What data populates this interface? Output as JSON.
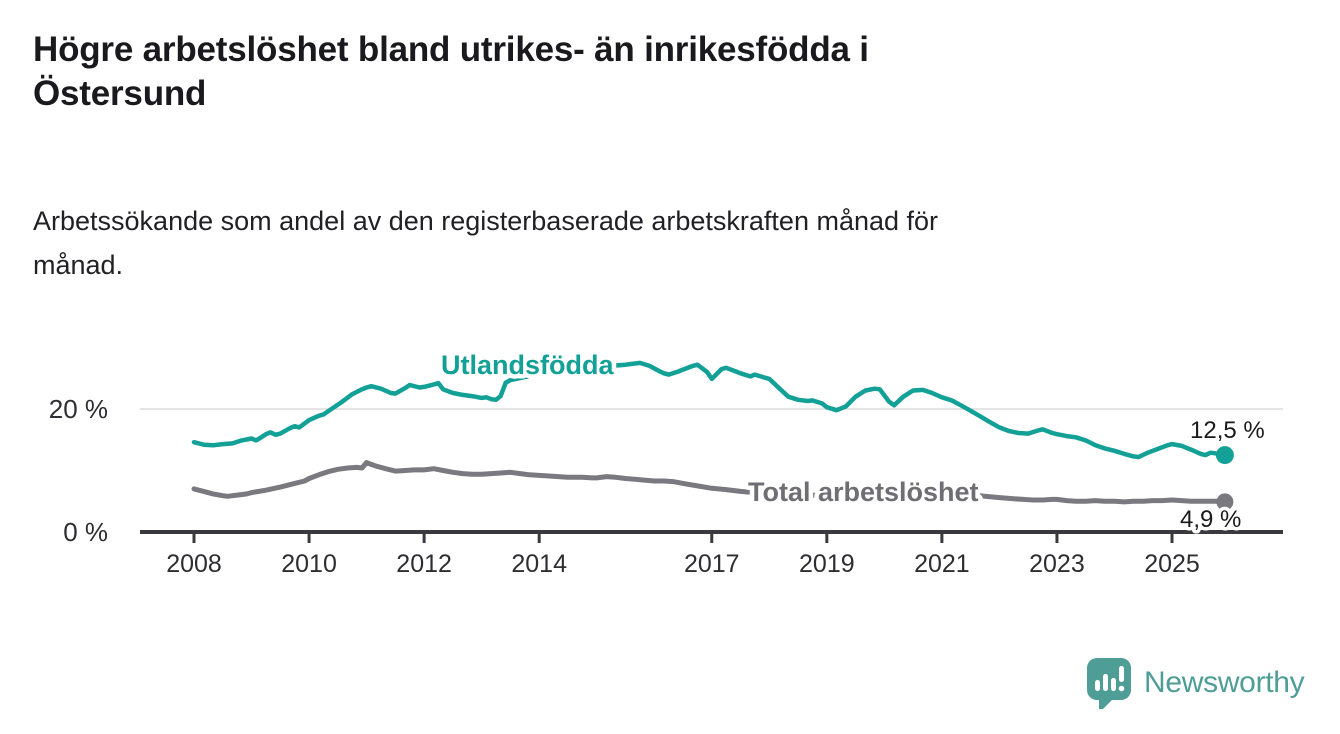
{
  "header": {
    "title_line1": "Högre arbetslöshet bland utrikes- än inrikesfödda i",
    "title_line2": "Östersund",
    "subtitle_line1": "Arbetssökande som andel av den registerbaserade arbetskraften månad för",
    "subtitle_line2": "månad."
  },
  "footer": {
    "brand": "Newsworthy",
    "logo_icon": "speech-bubble-bar-chart-icon"
  },
  "colors": {
    "series_foreign_born": "#13a096",
    "series_total": "#7a797f",
    "grid": "#dcdcdc",
    "axis": "#3a3a3e",
    "logo": "#4f9d97"
  },
  "chart_data": {
    "type": "line",
    "title": "Högre arbetslöshet bland utrikes- än inrikesfödda i Östersund",
    "subtitle": "Arbetssökande som andel av den registerbaserade arbetskraften månad för månad.",
    "xlabel": "",
    "ylabel": "",
    "grid": "single horizontal gridline at 20 %",
    "legend_position": "inline labels on lines",
    "x_axis": {
      "range_years": [
        2007.9,
        2026.3
      ],
      "ticks": [
        2008,
        2010,
        2012,
        2014,
        2017,
        2019,
        2021,
        2023,
        2025
      ],
      "tick_labels": [
        "2008",
        "2010",
        "2012",
        "2014",
        "2017",
        "2019",
        "2021",
        "2023",
        "2025"
      ]
    },
    "y_axis": {
      "range": [
        0,
        29
      ],
      "ticks": [
        0,
        20
      ],
      "labels": [
        "0 %",
        "20 %"
      ],
      "unit": "%"
    },
    "series": [
      {
        "name": "Utlandsfödda",
        "color": "#13a096",
        "end_value": 12.5,
        "end_label": "12,5 %",
        "points": [
          [
            2008.0,
            14.6
          ],
          [
            2008.17,
            14.2
          ],
          [
            2008.33,
            14.1
          ],
          [
            2008.5,
            14.3
          ],
          [
            2008.67,
            14.4
          ],
          [
            2008.83,
            14.9
          ],
          [
            2009.0,
            15.2
          ],
          [
            2009.08,
            14.9
          ],
          [
            2009.17,
            15.4
          ],
          [
            2009.25,
            15.9
          ],
          [
            2009.33,
            16.2
          ],
          [
            2009.42,
            15.8
          ],
          [
            2009.5,
            16.0
          ],
          [
            2009.67,
            16.9
          ],
          [
            2009.75,
            17.2
          ],
          [
            2009.83,
            17.0
          ],
          [
            2010.0,
            18.2
          ],
          [
            2010.17,
            18.9
          ],
          [
            2010.25,
            19.1
          ],
          [
            2010.42,
            20.2
          ],
          [
            2010.58,
            21.2
          ],
          [
            2010.75,
            22.4
          ],
          [
            2010.92,
            23.2
          ],
          [
            2011.0,
            23.5
          ],
          [
            2011.08,
            23.7
          ],
          [
            2011.25,
            23.3
          ],
          [
            2011.42,
            22.6
          ],
          [
            2011.5,
            22.5
          ],
          [
            2011.67,
            23.4
          ],
          [
            2011.75,
            23.9
          ],
          [
            2011.92,
            23.5
          ],
          [
            2012.0,
            23.6
          ],
          [
            2012.17,
            24.0
          ],
          [
            2012.25,
            24.2
          ],
          [
            2012.33,
            23.2
          ],
          [
            2012.5,
            22.6
          ],
          [
            2012.67,
            22.3
          ],
          [
            2012.83,
            22.1
          ],
          [
            2013.0,
            21.8
          ],
          [
            2013.08,
            21.9
          ],
          [
            2013.17,
            21.6
          ],
          [
            2013.25,
            21.5
          ],
          [
            2013.33,
            22.1
          ],
          [
            2013.42,
            24.3
          ],
          [
            2013.5,
            24.7
          ],
          [
            2013.75,
            25.2
          ],
          [
            2014.0,
            25.6
          ],
          [
            2014.25,
            25.9
          ],
          [
            2014.5,
            26.2
          ],
          [
            2014.75,
            26.5
          ],
          [
            2015.0,
            26.8
          ],
          [
            2015.25,
            27.0
          ],
          [
            2015.5,
            27.2
          ],
          [
            2015.75,
            27.5
          ],
          [
            2015.92,
            27.0
          ],
          [
            2016.08,
            26.2
          ],
          [
            2016.17,
            25.8
          ],
          [
            2016.25,
            25.6
          ],
          [
            2016.42,
            26.1
          ],
          [
            2016.5,
            26.4
          ],
          [
            2016.67,
            27.0
          ],
          [
            2016.75,
            27.2
          ],
          [
            2016.92,
            26.0
          ],
          [
            2017.0,
            24.9
          ],
          [
            2017.17,
            26.5
          ],
          [
            2017.25,
            26.7
          ],
          [
            2017.42,
            26.1
          ],
          [
            2017.5,
            25.8
          ],
          [
            2017.67,
            25.3
          ],
          [
            2017.75,
            25.6
          ],
          [
            2017.92,
            25.1
          ],
          [
            2018.0,
            24.9
          ],
          [
            2018.17,
            23.4
          ],
          [
            2018.33,
            22.0
          ],
          [
            2018.5,
            21.5
          ],
          [
            2018.67,
            21.3
          ],
          [
            2018.75,
            21.4
          ],
          [
            2018.92,
            20.9
          ],
          [
            2019.0,
            20.3
          ],
          [
            2019.17,
            19.8
          ],
          [
            2019.33,
            20.4
          ],
          [
            2019.5,
            22.0
          ],
          [
            2019.67,
            23.0
          ],
          [
            2019.83,
            23.3
          ],
          [
            2019.92,
            23.2
          ],
          [
            2020.08,
            21.2
          ],
          [
            2020.17,
            20.6
          ],
          [
            2020.33,
            22.0
          ],
          [
            2020.5,
            23.0
          ],
          [
            2020.67,
            23.1
          ],
          [
            2020.83,
            22.6
          ],
          [
            2021.0,
            21.9
          ],
          [
            2021.17,
            21.4
          ],
          [
            2021.33,
            20.6
          ],
          [
            2021.5,
            19.7
          ],
          [
            2021.67,
            18.8
          ],
          [
            2021.83,
            17.9
          ],
          [
            2022.0,
            17.0
          ],
          [
            2022.17,
            16.4
          ],
          [
            2022.33,
            16.1
          ],
          [
            2022.5,
            16.0
          ],
          [
            2022.67,
            16.5
          ],
          [
            2022.75,
            16.7
          ],
          [
            2022.92,
            16.1
          ],
          [
            2023.0,
            15.9
          ],
          [
            2023.17,
            15.6
          ],
          [
            2023.33,
            15.4
          ],
          [
            2023.5,
            14.9
          ],
          [
            2023.67,
            14.1
          ],
          [
            2023.83,
            13.6
          ],
          [
            2024.0,
            13.2
          ],
          [
            2024.17,
            12.7
          ],
          [
            2024.33,
            12.3
          ],
          [
            2024.42,
            12.2
          ],
          [
            2024.58,
            12.9
          ],
          [
            2024.75,
            13.5
          ],
          [
            2024.92,
            14.1
          ],
          [
            2025.0,
            14.3
          ],
          [
            2025.17,
            14.0
          ],
          [
            2025.33,
            13.4
          ],
          [
            2025.5,
            12.7
          ],
          [
            2025.58,
            12.5
          ],
          [
            2025.67,
            12.9
          ],
          [
            2025.75,
            12.8
          ],
          [
            2025.92,
            12.5
          ]
        ]
      },
      {
        "name": "Total arbetslöshet",
        "color": "#7a797f",
        "end_value": 4.9,
        "end_label": "4,9 %",
        "points": [
          [
            2008.0,
            7.0
          ],
          [
            2008.17,
            6.6
          ],
          [
            2008.33,
            6.2
          ],
          [
            2008.5,
            5.9
          ],
          [
            2008.58,
            5.8
          ],
          [
            2008.75,
            6.0
          ],
          [
            2008.92,
            6.2
          ],
          [
            2009.0,
            6.4
          ],
          [
            2009.25,
            6.8
          ],
          [
            2009.5,
            7.3
          ],
          [
            2009.75,
            7.9
          ],
          [
            2009.92,
            8.3
          ],
          [
            2010.0,
            8.7
          ],
          [
            2010.17,
            9.3
          ],
          [
            2010.33,
            9.8
          ],
          [
            2010.5,
            10.2
          ],
          [
            2010.67,
            10.4
          ],
          [
            2010.83,
            10.5
          ],
          [
            2010.92,
            10.4
          ],
          [
            2011.0,
            11.3
          ],
          [
            2011.08,
            11.0
          ],
          [
            2011.17,
            10.7
          ],
          [
            2011.33,
            10.3
          ],
          [
            2011.5,
            9.9
          ],
          [
            2011.67,
            10.0
          ],
          [
            2011.83,
            10.1
          ],
          [
            2012.0,
            10.1
          ],
          [
            2012.17,
            10.3
          ],
          [
            2012.33,
            10.0
          ],
          [
            2012.5,
            9.7
          ],
          [
            2012.67,
            9.5
          ],
          [
            2012.83,
            9.4
          ],
          [
            2013.0,
            9.4
          ],
          [
            2013.17,
            9.5
          ],
          [
            2013.33,
            9.6
          ],
          [
            2013.5,
            9.7
          ],
          [
            2013.67,
            9.5
          ],
          [
            2013.83,
            9.3
          ],
          [
            2014.0,
            9.2
          ],
          [
            2014.17,
            9.1
          ],
          [
            2014.33,
            9.0
          ],
          [
            2014.5,
            8.9
          ],
          [
            2014.75,
            8.9
          ],
          [
            2014.92,
            8.8
          ],
          [
            2015.0,
            8.8
          ],
          [
            2015.17,
            9.0
          ],
          [
            2015.33,
            8.9
          ],
          [
            2015.5,
            8.7
          ],
          [
            2015.75,
            8.5
          ],
          [
            2016.0,
            8.3
          ],
          [
            2016.17,
            8.3
          ],
          [
            2016.33,
            8.2
          ],
          [
            2016.5,
            7.9
          ],
          [
            2016.75,
            7.5
          ],
          [
            2017.0,
            7.1
          ],
          [
            2017.25,
            6.9
          ],
          [
            2017.5,
            6.6
          ],
          [
            2017.75,
            6.4
          ],
          [
            2018.0,
            6.3
          ],
          [
            2018.25,
            6.2
          ],
          [
            2018.5,
            6.1
          ],
          [
            2018.75,
            6.0
          ],
          [
            2019.0,
            5.9
          ],
          [
            2019.25,
            5.8
          ],
          [
            2019.5,
            5.8
          ],
          [
            2019.75,
            6.0
          ],
          [
            2020.0,
            6.4
          ],
          [
            2020.25,
            7.0
          ],
          [
            2020.5,
            7.3
          ],
          [
            2020.75,
            7.1
          ],
          [
            2021.0,
            6.8
          ],
          [
            2021.25,
            6.4
          ],
          [
            2021.5,
            6.1
          ],
          [
            2021.75,
            5.8
          ],
          [
            2022.0,
            5.6
          ],
          [
            2022.25,
            5.4
          ],
          [
            2022.42,
            5.3
          ],
          [
            2022.58,
            5.2
          ],
          [
            2022.75,
            5.2
          ],
          [
            2022.92,
            5.3
          ],
          [
            2023.0,
            5.3
          ],
          [
            2023.17,
            5.1
          ],
          [
            2023.33,
            5.0
          ],
          [
            2023.5,
            5.0
          ],
          [
            2023.67,
            5.1
          ],
          [
            2023.83,
            5.0
          ],
          [
            2024.0,
            5.0
          ],
          [
            2024.17,
            4.9
          ],
          [
            2024.33,
            5.0
          ],
          [
            2024.5,
            5.0
          ],
          [
            2024.67,
            5.1
          ],
          [
            2024.83,
            5.1
          ],
          [
            2025.0,
            5.2
          ],
          [
            2025.17,
            5.1
          ],
          [
            2025.33,
            5.0
          ],
          [
            2025.5,
            5.0
          ],
          [
            2025.75,
            5.0
          ],
          [
            2025.92,
            4.9
          ]
        ]
      }
    ]
  }
}
